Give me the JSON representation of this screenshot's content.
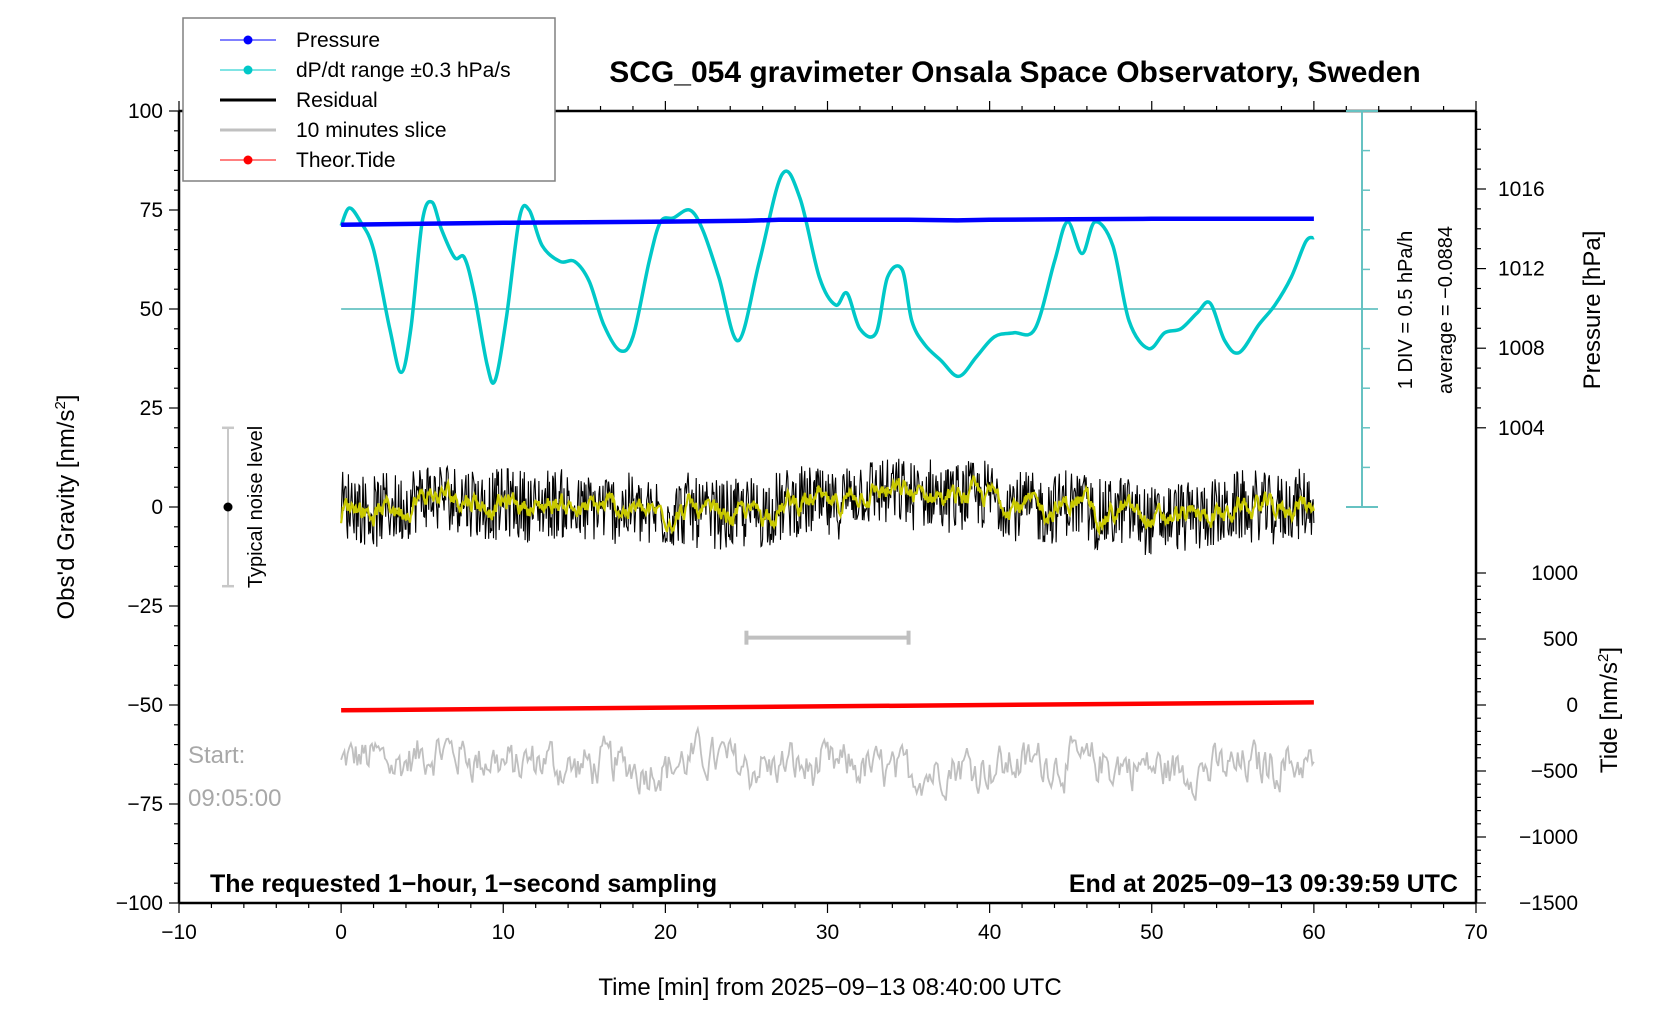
{
  "chart_data": {
    "type": "line",
    "title": "SCG_054 gravimeter Onsala Space Observatory, Sweden",
    "xlabel": "Time [min] from 2025−09−13 08:40:00 UTC",
    "ylabel": "Obs'd Gravity [nm/s",
    "ylabel_sup": "2",
    "ylabel_close": "]",
    "y2label_pressure": "Pressure [hPa]",
    "y2label_tide": "Tide [nm/s",
    "y2label_tide_sup": "2",
    "y2label_tide_close": "]",
    "xlim": [
      -10,
      70
    ],
    "ylim": [
      -100,
      100
    ],
    "x_ticks": [
      "−10",
      "0",
      "10",
      "20",
      "30",
      "40",
      "50",
      "60",
      "70"
    ],
    "x_tick_values": [
      -10,
      0,
      10,
      20,
      30,
      40,
      50,
      60,
      70
    ],
    "y_ticks": [
      "100",
      "75",
      "50",
      "25",
      "0",
      "−25",
      "−50",
      "−75",
      "−100"
    ],
    "y_tick_values": [
      100,
      75,
      50,
      25,
      0,
      -25,
      -50,
      -75,
      -100
    ],
    "pressure_ticks": [
      "1016",
      "1012",
      "1008",
      "1004"
    ],
    "pressure_tick_values": [
      1016,
      1012,
      1008,
      1004
    ],
    "tide_ticks": [
      "1000",
      "500",
      "0",
      "−500",
      "−1000",
      "−1500"
    ],
    "tide_tick_values": [
      1000,
      500,
      0,
      -500,
      -1000,
      -1500
    ],
    "legend": {
      "position": "top-left",
      "entries": [
        {
          "label": "Pressure",
          "color": "#0000ff",
          "marker": "dot"
        },
        {
          "label": "dP/dt range ±0.3 hPa/s",
          "color": "#00c8c8",
          "marker": "dot"
        },
        {
          "label": "Residual",
          "color": "#000000",
          "marker": "line"
        },
        {
          "label": "10 minutes slice",
          "color": "#c0c0c0",
          "marker": "line"
        },
        {
          "label": "Theor.Tide",
          "color": "#ff0000",
          "marker": "dot"
        }
      ]
    },
    "series": [
      {
        "name": "Pressure",
        "axis": "pressure_hPa",
        "color": "#0000ff",
        "x": [
          0,
          5,
          10,
          15,
          20,
          25,
          27,
          30,
          35,
          38,
          40,
          45,
          50,
          55,
          60
        ],
        "values": [
          1014.2,
          1014.25,
          1014.3,
          1014.33,
          1014.36,
          1014.4,
          1014.45,
          1014.45,
          1014.45,
          1014.42,
          1014.45,
          1014.48,
          1014.5,
          1014.5,
          1014.5
        ]
      },
      {
        "name": "dP/dt",
        "axis": "gravity_display",
        "color": "#00c8c8",
        "x": [
          0,
          0.5,
          1.2,
          2,
          3,
          3.7,
          4.3,
          5,
          5.6,
          6.2,
          7,
          7.6,
          8.2,
          9,
          9.5,
          10.2,
          11,
          11.6,
          12.4,
          13.5,
          14.4,
          15.3,
          16.2,
          17.2,
          18,
          19,
          19.7,
          20.5,
          21.5,
          22.3,
          23.3,
          24.5,
          25.8,
          27.2,
          28.3,
          29.5,
          30.5,
          31.2,
          32,
          33,
          33.7,
          34.6,
          35.2,
          36,
          37,
          38.1,
          39.2,
          40.3,
          41.5,
          42.8,
          44,
          44.8,
          45.7,
          46.5,
          47.6,
          48.6,
          49.8,
          50.8,
          51.8,
          52.8,
          53.6,
          54.5,
          55.4,
          56.6,
          57.6,
          58.6,
          59.5,
          60
        ],
        "values": [
          71,
          75.5,
          72,
          65,
          45,
          34,
          45,
          72,
          77,
          70,
          63,
          63,
          54,
          36,
          32,
          48,
          73,
          75,
          66,
          62,
          62,
          57,
          46,
          39.5,
          43,
          62,
          72,
          73,
          75,
          70,
          58,
          42,
          62,
          84,
          78,
          58,
          51,
          54,
          45,
          44,
          58,
          60,
          47,
          41,
          37,
          33,
          38,
          43,
          44,
          45,
          62,
          72,
          64,
          72,
          66,
          47,
          40,
          44,
          45,
          49,
          51.5,
          42,
          39,
          46,
          51,
          58,
          67,
          68
        ]
      },
      {
        "name": "Residual",
        "axis": "gravity",
        "color": "#000000",
        "x_range": [
          0,
          60
        ],
        "typical_amplitude": 10
      },
      {
        "name": "Residual smoothed",
        "axis": "gravity",
        "color": "#c8c800",
        "x_range": [
          0,
          60
        ]
      },
      {
        "name": "10 minutes slice",
        "axis": "gravity",
        "color": "#c0c0c0",
        "x_range": [
          0,
          60
        ],
        "offset": -65
      },
      {
        "name": "Theor.Tide",
        "axis": "tide_nm_s2",
        "color": "#ff0000",
        "x": [
          0,
          60
        ],
        "values": [
          -40,
          20
        ]
      }
    ],
    "dpdt_scale": {
      "center_value": 50,
      "label": "1 DIV = 0.5 hPa/h",
      "average_label": "average = −0.0884"
    },
    "noise_level": {
      "label": "Typical noise level",
      "center": 0,
      "half_range": 20
    },
    "slice_marker": {
      "x_start": 25,
      "x_end": 35,
      "y": -33
    },
    "annotations": {
      "start_label": "Start:",
      "start_time": "09:05:00",
      "bottom_left": "The requested 1−hour, 1−second sampling",
      "bottom_right": "End at 2025−09−13 09:39:59 UTC"
    }
  }
}
